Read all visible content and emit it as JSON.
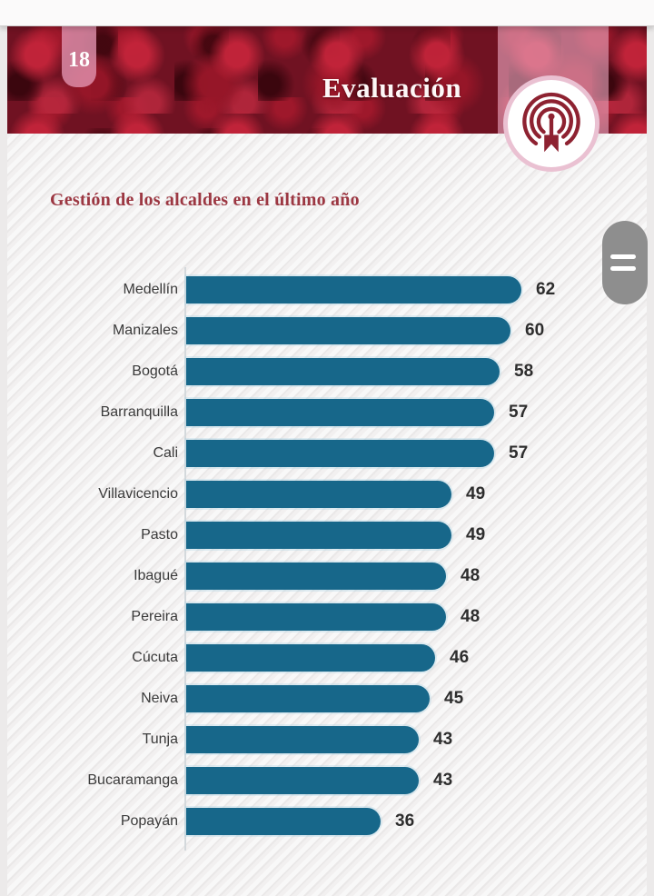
{
  "page": {
    "number": "18",
    "header_title": "Evaluación",
    "section_title": "Gestión de los alcaldes en el último año"
  },
  "chart_data": {
    "type": "bar",
    "orientation": "horizontal",
    "title": "Gestión de los alcaldes en el último año",
    "categories": [
      "Medellín",
      "Manizales",
      "Bogotá",
      "Barranquilla",
      "Cali",
      "Villavicencio",
      "Pasto",
      "Ibagué",
      "Pereira",
      "Cúcuta",
      "Neiva",
      "Tunja",
      "Bucaramanga",
      "Popayán"
    ],
    "values": [
      62,
      60,
      58,
      57,
      57,
      49,
      49,
      48,
      48,
      46,
      45,
      43,
      43,
      36
    ],
    "xlim": [
      0,
      65
    ],
    "grid": false,
    "legend": false,
    "value_labels": "bar-end",
    "bar_color": "#17678a"
  },
  "icons": {
    "logo": "poll-target-icon",
    "handle": "drag-handle-icon"
  },
  "colors": {
    "banner_red": "#701222",
    "accent_pink": "#e294b0",
    "title_red": "#9c3742",
    "bar_teal": "#17678a",
    "label_gray": "#3a3a3a",
    "value_dark": "#2d2d2d",
    "handle_gray": "#8e8e8e",
    "page_bg": "#f2f0f0"
  }
}
